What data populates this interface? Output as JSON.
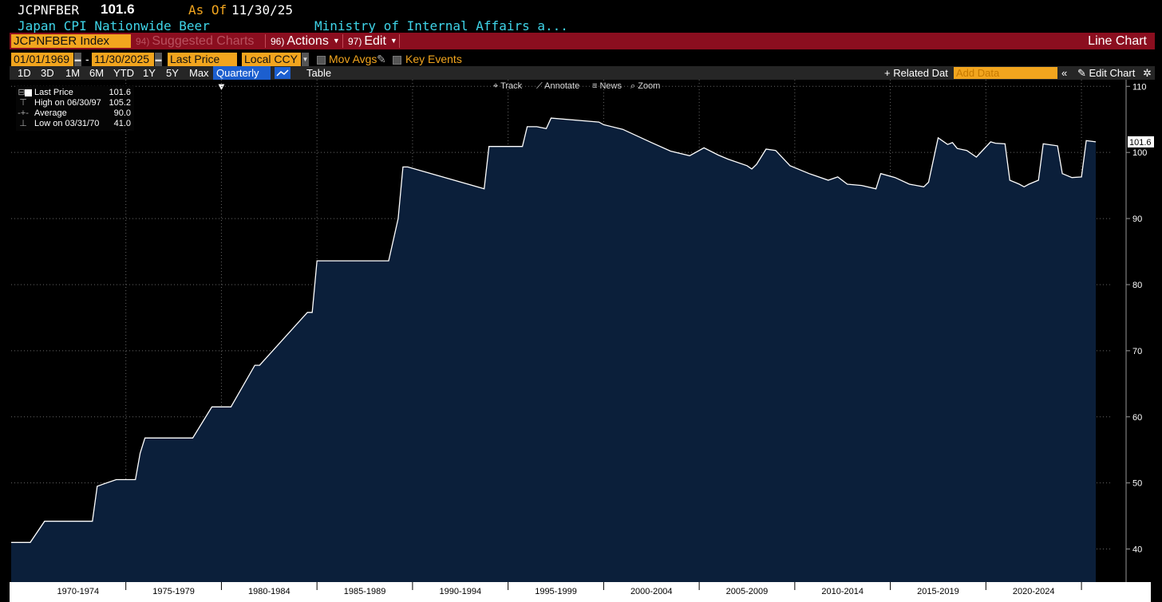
{
  "header": {
    "ticker": "JCPNFBER",
    "last_value": "101.6",
    "as_of_label": "As Of",
    "as_of_date": "11/30/25",
    "description": "Japan CPI Nationwide Beer",
    "source": "Ministry of Internal Affairs a..."
  },
  "toolbar": {
    "security": "JCPNFBER Index",
    "suggested": {
      "num": "94)",
      "label": "Suggested Charts"
    },
    "actions": {
      "num": "96)",
      "label": "Actions"
    },
    "edit": {
      "num": "97)",
      "label": "Edit"
    },
    "view_title": "Line Chart"
  },
  "controls": {
    "start_date": "01/01/1969",
    "date_sep": "-",
    "end_date": "11/30/2025",
    "field": "Last Price",
    "currency": "Local CCY",
    "mov_avgs": "Mov Avgs",
    "key_events": "Key Events"
  },
  "ranges": [
    "1D",
    "3D",
    "1M",
    "6M",
    "YTD",
    "1Y",
    "5Y",
    "Max"
  ],
  "periodicity": "Quarterly ▼",
  "table_label": "Table",
  "related_data": "+ Related Dat",
  "add_data_placeholder": "Add Data",
  "collapse": "«",
  "edit_chart": "✎ Edit Chart",
  "settings_icon": "gear-icon",
  "chart_tools": [
    "Track",
    "Annotate",
    "News",
    "Zoom"
  ],
  "legend": {
    "last_label": "Last Price",
    "last_value": "101.6",
    "high_label": "High on 06/30/97",
    "high_value": "105.2",
    "avg_label": "Average",
    "avg_value": "90.0",
    "low_label": "Low on 03/31/70",
    "low_value": "41.0"
  },
  "colors": {
    "accent": "#f2a51e",
    "toolbar": "#8b0e1f",
    "area_fill": "#0b1f3a",
    "line": "#ffffff",
    "cyan": "#3fd4e8"
  },
  "chart_data": {
    "type": "area",
    "x": [
      1969.0,
      1970.0,
      1970.75,
      1973.25,
      1973.5,
      1974.5,
      1975.5,
      1975.75,
      1976.0,
      1978.5,
      1979.5,
      1980.5,
      1981.75,
      1982.0,
      1984.5,
      1984.75,
      1985.0,
      1988.75,
      1989.25,
      1989.5,
      1989.75,
      1993.75,
      1994.0,
      1995.75,
      1996.0,
      1996.5,
      1997.0,
      1997.25,
      1999.75,
      2000.0,
      2001.0,
      2002.5,
      2003.5,
      2004.5,
      2005.25,
      2006.0,
      2006.5,
      2007.5,
      2007.75,
      2008.0,
      2008.5,
      2009.0,
      2009.75,
      2010.75,
      2011.75,
      2012.25,
      2012.75,
      2013.5,
      2014.25,
      2014.5,
      2015.25,
      2016.0,
      2016.75,
      2017.0,
      2017.5,
      2018.0,
      2018.25,
      2018.5,
      2019.0,
      2019.5,
      2020.25,
      2020.5,
      2021.0,
      2021.25,
      2021.75,
      2022.0,
      2022.25,
      2022.75,
      2023.0,
      2023.75,
      2024.0,
      2024.5,
      2025.0,
      2025.25,
      2025.75
    ],
    "y": [
      41.0,
      41.0,
      44.2,
      44.2,
      49.5,
      50.5,
      50.5,
      54.5,
      56.8,
      56.8,
      61.5,
      61.5,
      67.8,
      67.8,
      75.8,
      75.8,
      83.6,
      83.6,
      90.0,
      97.8,
      97.8,
      94.5,
      100.9,
      100.9,
      103.9,
      103.9,
      103.6,
      105.2,
      104.6,
      104.2,
      103.5,
      101.5,
      100.2,
      99.5,
      100.7,
      99.6,
      99.0,
      98.0,
      97.5,
      98.2,
      100.5,
      100.3,
      98.0,
      96.8,
      95.8,
      96.3,
      95.2,
      95.0,
      94.5,
      96.8,
      96.2,
      95.2,
      94.8,
      95.5,
      102.2,
      101.2,
      101.5,
      100.6,
      100.3,
      99.3,
      101.6,
      101.4,
      101.3,
      95.8,
      95.2,
      94.8,
      95.2,
      95.8,
      101.3,
      101.0,
      96.8,
      96.2,
      96.3,
      101.8,
      101.6
    ],
    "xlim": [
      1969.0,
      2026.5
    ],
    "ylim": [
      35.0,
      111.0
    ],
    "y_ticks": [
      40,
      50,
      60,
      70,
      80,
      90,
      100,
      110
    ],
    "x_tick_labels": [
      "1970-1974",
      "1975-1979",
      "1980-1984",
      "1985-1989",
      "1990-1994",
      "1995-1999",
      "2000-2004",
      "2005-2009",
      "2010-2014",
      "2015-2019",
      "2020-2024"
    ],
    "x_tick_centers": [
      1972.5,
      1977.5,
      1982.5,
      1987.5,
      1992.5,
      1997.5,
      2002.5,
      2007.5,
      2012.5,
      2017.5,
      2022.5
    ],
    "x_boundaries": [
      1975,
      1980,
      1985,
      1990,
      1995,
      2000,
      2005,
      2010,
      2015,
      2020,
      2025
    ],
    "last_label": "101.6",
    "grid": true
  }
}
